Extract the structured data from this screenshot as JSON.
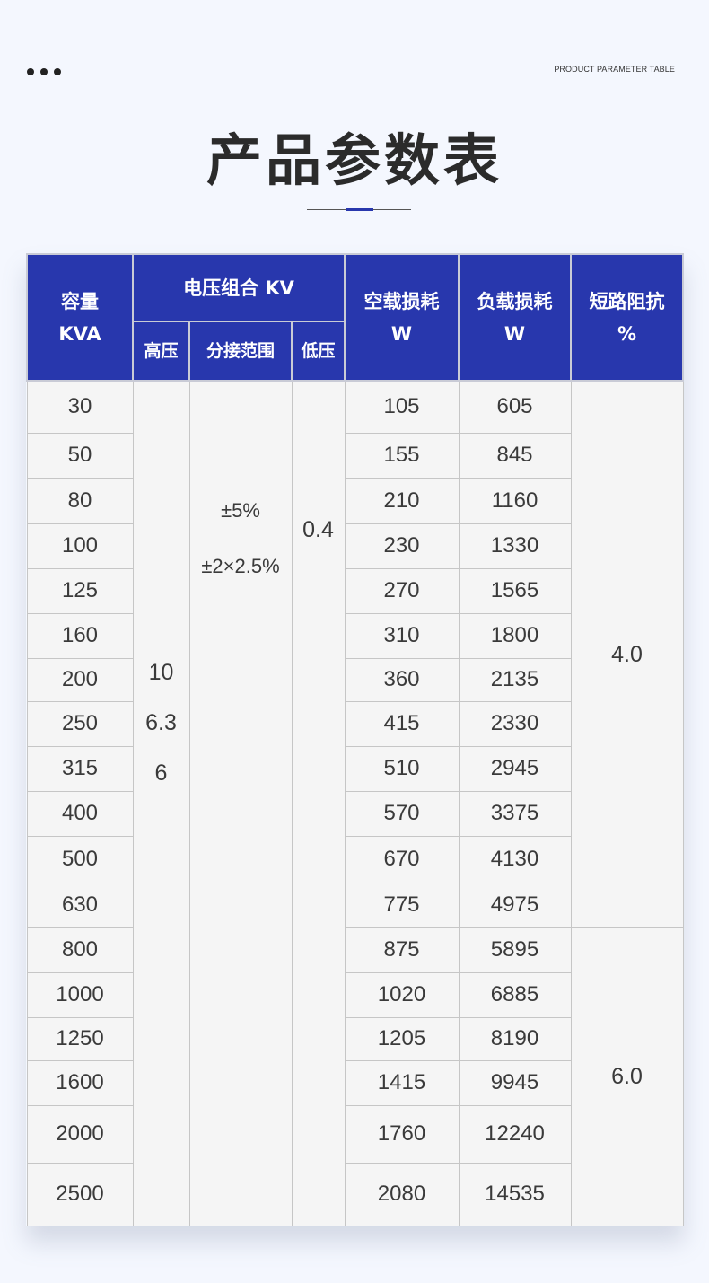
{
  "header": {
    "subtitle": "PRODUCT PARAMETER TABLE",
    "title": "产品参数表",
    "accent_color": "#2837ad"
  },
  "table": {
    "col_capacity": [
      "容量",
      "KVA"
    ],
    "col_voltage_group": "电压组合 KV",
    "col_high": "高压",
    "col_tap": "分接范围",
    "col_low": "低压",
    "col_noload": [
      "空载损耗",
      "W"
    ],
    "col_load": [
      "负载损耗",
      "W"
    ],
    "col_impedance": [
      "短路阻抗",
      "%"
    ],
    "high_voltage": [
      "10",
      "6.3",
      "6"
    ],
    "tap_range": [
      "±5%",
      "±2×2.5%"
    ],
    "low_voltage": "0.4",
    "impedance_group1": "4.0",
    "impedance_group2": "6.0",
    "rows": [
      {
        "kva": "30",
        "noload": "105",
        "load": "605"
      },
      {
        "kva": "50",
        "noload": "155",
        "load": "845"
      },
      {
        "kva": "80",
        "noload": "210",
        "load": "1160"
      },
      {
        "kva": "100",
        "noload": "230",
        "load": "1330"
      },
      {
        "kva": "125",
        "noload": "270",
        "load": "1565"
      },
      {
        "kva": "160",
        "noload": "310",
        "load": "1800"
      },
      {
        "kva": "200",
        "noload": "360",
        "load": "2135"
      },
      {
        "kva": "250",
        "noload": "415",
        "load": "2330"
      },
      {
        "kva": "315",
        "noload": "510",
        "load": "2945"
      },
      {
        "kva": "400",
        "noload": "570",
        "load": "3375"
      },
      {
        "kva": "500",
        "noload": "670",
        "load": "4130"
      },
      {
        "kva": "630",
        "noload": "775",
        "load": "4975"
      },
      {
        "kva": "800",
        "noload": "875",
        "load": "5895"
      },
      {
        "kva": "1000",
        "noload": "1020",
        "load": "6885"
      },
      {
        "kva": "1250",
        "noload": "1205",
        "load": "8190"
      },
      {
        "kva": "1600",
        "noload": "1415",
        "load": "9945"
      },
      {
        "kva": "2000",
        "noload": "1760",
        "load": "12240"
      },
      {
        "kva": "2500",
        "noload": "2080",
        "load": "14535"
      }
    ]
  }
}
